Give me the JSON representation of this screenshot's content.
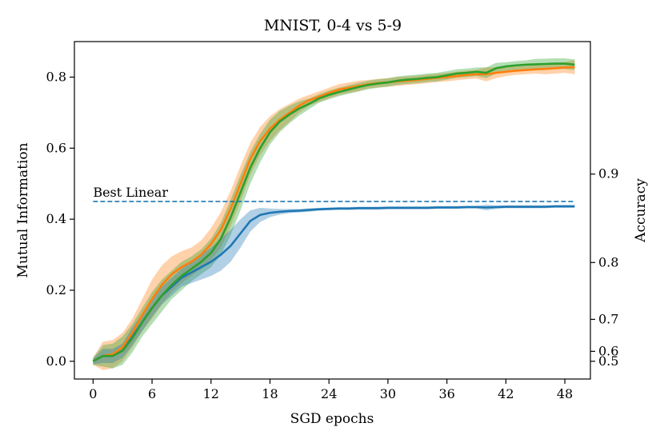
{
  "chart_data": {
    "type": "line",
    "title": "MNIST, 0-4 vs 5-9",
    "xlabel": "SGD epochs",
    "ylabel": "Mutual Information",
    "ylabel_right": "Accuracy",
    "xlim": [
      -1.9,
      50.6
    ],
    "ylim": [
      -0.05,
      0.9
    ],
    "x_ticks": [
      0,
      6,
      12,
      18,
      24,
      30,
      36,
      42,
      48
    ],
    "x_tick_labels": [
      "0",
      "6",
      "12",
      "18",
      "24",
      "30",
      "36",
      "42",
      "48"
    ],
    "y_ticks": [
      0.0,
      0.2,
      0.4,
      0.6,
      0.8
    ],
    "y_tick_labels": [
      "0.0",
      "0.2",
      "0.4",
      "0.6",
      "0.8"
    ],
    "right_ticks": [
      {
        "mi": 0.0,
        "label": "0.5"
      },
      {
        "mi": 0.028,
        "label": "0.6"
      },
      {
        "mi": 0.118,
        "label": "0.7"
      },
      {
        "mi": 0.278,
        "label": "0.8"
      },
      {
        "mi": 0.527,
        "label": "0.9"
      }
    ],
    "reference_line": {
      "label": "Best Linear",
      "y": 0.45,
      "color": "#1f77b4"
    },
    "series": [
      {
        "name": "blue",
        "color": "#1f77b4",
        "x": [
          0,
          1,
          2,
          3,
          4,
          5,
          6,
          7,
          8,
          9,
          10,
          11,
          12,
          13,
          14,
          15,
          16,
          17,
          18,
          19,
          20,
          21,
          22,
          23,
          24,
          25,
          26,
          27,
          28,
          29,
          30,
          31,
          32,
          33,
          34,
          35,
          36,
          37,
          38,
          39,
          40,
          41,
          42,
          43,
          44,
          45,
          46,
          47,
          48,
          49
        ],
        "values": [
          0.0,
          0.015,
          0.015,
          0.03,
          0.07,
          0.11,
          0.15,
          0.185,
          0.21,
          0.235,
          0.25,
          0.265,
          0.28,
          0.3,
          0.325,
          0.36,
          0.395,
          0.412,
          0.418,
          0.421,
          0.423,
          0.424,
          0.426,
          0.428,
          0.429,
          0.43,
          0.43,
          0.431,
          0.431,
          0.431,
          0.432,
          0.432,
          0.432,
          0.432,
          0.432,
          0.433,
          0.433,
          0.433,
          0.434,
          0.434,
          0.433,
          0.434,
          0.435,
          0.435,
          0.435,
          0.435,
          0.435,
          0.436,
          0.436,
          0.436
        ],
        "band": [
          0.008,
          0.02,
          0.02,
          0.02,
          0.025,
          0.025,
          0.025,
          0.025,
          0.025,
          0.025,
          0.03,
          0.035,
          0.04,
          0.045,
          0.045,
          0.04,
          0.03,
          0.02,
          0.012,
          0.008,
          0.006,
          0.005,
          0.005,
          0.004,
          0.004,
          0.004,
          0.004,
          0.004,
          0.004,
          0.004,
          0.004,
          0.004,
          0.004,
          0.004,
          0.004,
          0.004,
          0.004,
          0.004,
          0.004,
          0.004,
          0.008,
          0.005,
          0.004,
          0.004,
          0.004,
          0.004,
          0.004,
          0.004,
          0.004,
          0.004
        ]
      },
      {
        "name": "orange",
        "color": "#ff7f0e",
        "x": [
          0,
          1,
          2,
          3,
          4,
          5,
          6,
          7,
          8,
          9,
          10,
          11,
          12,
          13,
          14,
          15,
          16,
          17,
          18,
          19,
          20,
          21,
          22,
          23,
          24,
          25,
          26,
          27,
          28,
          29,
          30,
          31,
          32,
          33,
          34,
          35,
          36,
          37,
          38,
          39,
          40,
          41,
          42,
          43,
          44,
          45,
          46,
          47,
          48,
          49
        ],
        "values": [
          0.0,
          0.015,
          0.02,
          0.04,
          0.08,
          0.13,
          0.175,
          0.215,
          0.245,
          0.265,
          0.28,
          0.3,
          0.33,
          0.37,
          0.43,
          0.5,
          0.57,
          0.62,
          0.655,
          0.68,
          0.7,
          0.72,
          0.735,
          0.745,
          0.755,
          0.765,
          0.77,
          0.775,
          0.78,
          0.783,
          0.785,
          0.788,
          0.79,
          0.792,
          0.795,
          0.798,
          0.8,
          0.803,
          0.806,
          0.808,
          0.808,
          0.812,
          0.815,
          0.818,
          0.82,
          0.822,
          0.823,
          0.825,
          0.827,
          0.828
        ],
        "band": [
          0.01,
          0.04,
          0.04,
          0.04,
          0.04,
          0.045,
          0.055,
          0.055,
          0.05,
          0.045,
          0.04,
          0.04,
          0.045,
          0.05,
          0.05,
          0.05,
          0.045,
          0.04,
          0.035,
          0.03,
          0.025,
          0.02,
          0.015,
          0.015,
          0.015,
          0.015,
          0.015,
          0.015,
          0.012,
          0.012,
          0.012,
          0.012,
          0.012,
          0.012,
          0.012,
          0.012,
          0.012,
          0.012,
          0.012,
          0.012,
          0.02,
          0.015,
          0.012,
          0.012,
          0.012,
          0.012,
          0.015,
          0.015,
          0.015,
          0.02
        ]
      },
      {
        "name": "green",
        "color": "#2ca02c",
        "x": [
          0,
          1,
          2,
          3,
          4,
          5,
          6,
          7,
          8,
          9,
          10,
          11,
          12,
          13,
          14,
          15,
          16,
          17,
          18,
          19,
          20,
          21,
          22,
          23,
          24,
          25,
          26,
          27,
          28,
          29,
          30,
          31,
          32,
          33,
          34,
          35,
          36,
          37,
          38,
          39,
          40,
          41,
          42,
          43,
          44,
          45,
          46,
          47,
          48,
          49
        ],
        "values": [
          0.0,
          0.015,
          0.015,
          0.03,
          0.065,
          0.11,
          0.15,
          0.185,
          0.215,
          0.24,
          0.26,
          0.28,
          0.305,
          0.345,
          0.405,
          0.475,
          0.545,
          0.6,
          0.645,
          0.675,
          0.695,
          0.712,
          0.725,
          0.74,
          0.75,
          0.758,
          0.765,
          0.772,
          0.778,
          0.782,
          0.785,
          0.79,
          0.793,
          0.795,
          0.798,
          0.8,
          0.805,
          0.81,
          0.812,
          0.815,
          0.812,
          0.825,
          0.83,
          0.833,
          0.835,
          0.836,
          0.837,
          0.838,
          0.838,
          0.835
        ],
        "band": [
          0.01,
          0.03,
          0.035,
          0.04,
          0.04,
          0.04,
          0.045,
          0.045,
          0.04,
          0.04,
          0.035,
          0.035,
          0.04,
          0.045,
          0.05,
          0.05,
          0.045,
          0.04,
          0.035,
          0.03,
          0.025,
          0.02,
          0.015,
          0.012,
          0.012,
          0.012,
          0.012,
          0.012,
          0.012,
          0.012,
          0.012,
          0.012,
          0.012,
          0.012,
          0.012,
          0.012,
          0.012,
          0.012,
          0.012,
          0.012,
          0.015,
          0.015,
          0.012,
          0.012,
          0.012,
          0.015,
          0.015,
          0.015,
          0.015,
          0.015
        ]
      }
    ]
  }
}
